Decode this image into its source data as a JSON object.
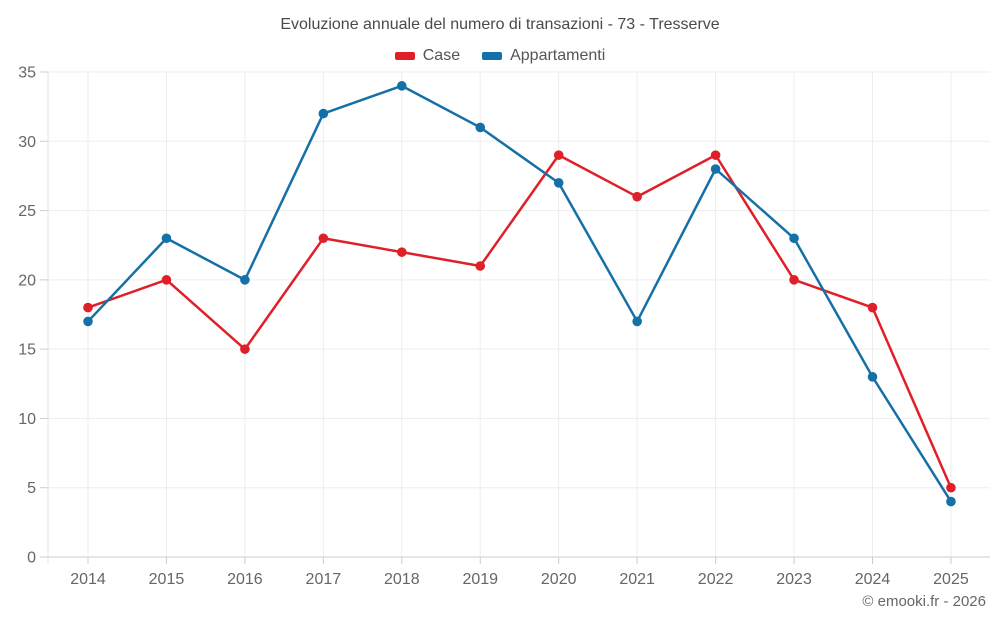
{
  "chart_data": {
    "type": "line",
    "title": "Evoluzione annuale del numero di transazioni - 73 - Tresserve",
    "categories": [
      "2014",
      "2015",
      "2016",
      "2017",
      "2018",
      "2019",
      "2020",
      "2021",
      "2022",
      "2023",
      "2024",
      "2025"
    ],
    "series": [
      {
        "name": "Case",
        "color": "#e02028",
        "values": [
          18,
          20,
          15,
          23,
          22,
          21,
          29,
          26,
          29,
          20,
          18,
          5
        ]
      },
      {
        "name": "Appartamenti",
        "color": "#1670a8",
        "values": [
          17,
          23,
          20,
          32,
          34,
          31,
          27,
          17,
          28,
          23,
          13,
          4
        ]
      }
    ],
    "xlabel": "",
    "ylabel": "",
    "ylim": [
      0,
      35
    ],
    "y_ticks": [
      0,
      5,
      10,
      15,
      20,
      25,
      30,
      35
    ],
    "grid": true,
    "legend_position": "top",
    "colors": {
      "grid_line": "#ededed",
      "axis_line": "#cccccc",
      "axis_label": "#666666",
      "title_text": "#4a4a4a",
      "legend_text": "#555555"
    }
  },
  "footer": {
    "copyright": "© emooki.fr - 2026"
  }
}
